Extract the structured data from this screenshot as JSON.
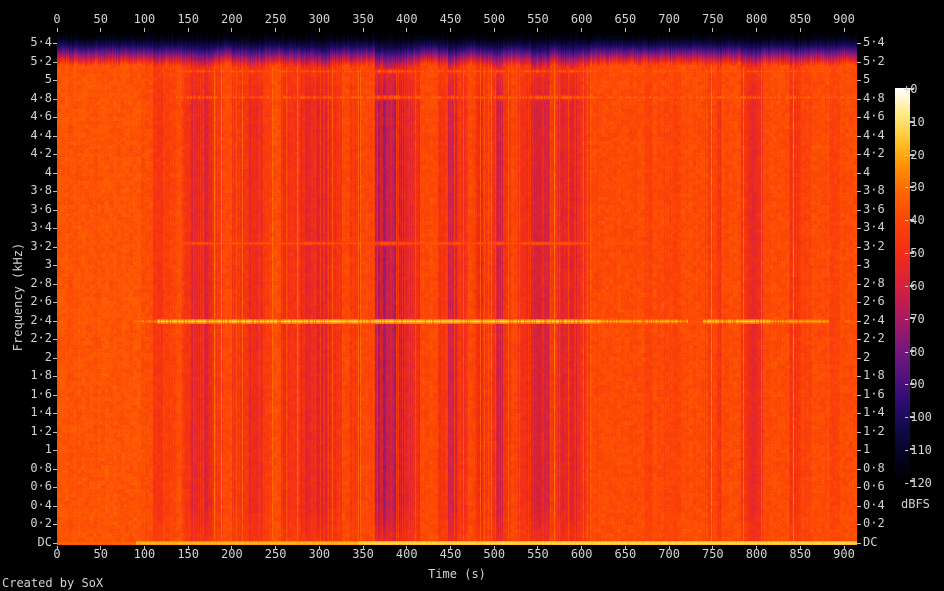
{
  "credit": "Created by SoX",
  "colors": {
    "background": "#000000",
    "label_text": "#d4d4d4",
    "tick_mark": "#c0c0c0"
  },
  "axes": {
    "time": {
      "title": "Time (s)"
    },
    "freq": {
      "title": "Frequency (kHz)"
    },
    "level": {
      "title": "dBFS"
    }
  },
  "chart_data": {
    "type": "heatmap",
    "subtype": "audio-spectrogram",
    "title": "",
    "xlabel": "Time (s)",
    "ylabel": "Frequency (kHz)",
    "zlabel": "dBFS",
    "x_range_s": [
      0,
      914
    ],
    "y_range_khz": [
      0,
      5.5125
    ],
    "z_range_dbfs": [
      -120,
      0
    ],
    "x_ticks": [
      "0",
      "50",
      "100",
      "150",
      "200",
      "250",
      "300",
      "350",
      "400",
      "450",
      "500",
      "550",
      "600",
      "650",
      "700",
      "750",
      "800",
      "850",
      "900"
    ],
    "y_ticks_top_to_bottom": [
      "5·4",
      "5·2",
      "5",
      "4·8",
      "4·6",
      "4·4",
      "4·2",
      "4",
      "3·8",
      "3·6",
      "3·4",
      "3·2",
      "3",
      "2·8",
      "2·6",
      "2·4",
      "2·2",
      "2",
      "1·8",
      "1·6",
      "1·4",
      "1·2",
      "1",
      "0·8",
      "0·6",
      "0·4",
      "0·2",
      "DC"
    ],
    "z_ticks": [
      "+0",
      "-10",
      "-20",
      "-30",
      "-40",
      "-50",
      "-60",
      "-70",
      "-80",
      "-90",
      "-100",
      "-110",
      "-120"
    ],
    "grid": false,
    "legend_position": "right-colorbar",
    "background_level_db": -37.2,
    "lowpass_rolloff_khz": 5.2,
    "palette_stops_db_rgb": [
      [
        -120,
        [
          0,
          0,
          0
        ]
      ],
      [
        -112,
        [
          6,
          4,
          34
        ]
      ],
      [
        -104,
        [
          18,
          9,
          74
        ]
      ],
      [
        -96,
        [
          42,
          13,
          112
        ]
      ],
      [
        -88,
        [
          82,
          19,
          128
        ]
      ],
      [
        -80,
        [
          118,
          24,
          125
        ]
      ],
      [
        -72,
        [
          160,
          26,
          104
        ]
      ],
      [
        -64,
        [
          198,
          31,
          76
        ]
      ],
      [
        -56,
        [
          226,
          38,
          44
        ]
      ],
      [
        -48,
        [
          246,
          50,
          18
        ]
      ],
      [
        -40,
        [
          252,
          70,
          6
        ]
      ],
      [
        -32,
        [
          255,
          100,
          2
        ]
      ],
      [
        -24,
        [
          255,
          144,
          4
        ]
      ],
      [
        -16,
        [
          255,
          196,
          44
        ]
      ],
      [
        -8,
        [
          255,
          235,
          130
        ]
      ],
      [
        0,
        [
          255,
          255,
          255
        ]
      ]
    ],
    "time_bands_s_db": [
      [
        0,
        95,
        -36.2
      ],
      [
        95,
        109,
        -38.5
      ],
      [
        109,
        121,
        -46
      ],
      [
        121,
        136,
        -41.5
      ],
      [
        136,
        142,
        -38.5
      ],
      [
        142,
        152,
        -47
      ],
      [
        152,
        178,
        -52.5
      ],
      [
        178,
        189,
        -46
      ],
      [
        189,
        199,
        -38.8
      ],
      [
        199,
        218,
        -47.5
      ],
      [
        218,
        234,
        -52.5
      ],
      [
        234,
        246,
        -43
      ],
      [
        246,
        256,
        -38.8
      ],
      [
        256,
        279,
        -47.5
      ],
      [
        279,
        297,
        -52
      ],
      [
        297,
        313,
        -56
      ],
      [
        313,
        325,
        -46
      ],
      [
        325,
        333,
        -39
      ],
      [
        333,
        347,
        -45.5
      ],
      [
        347,
        363,
        -40.5
      ],
      [
        363,
        396,
        -62
      ],
      [
        396,
        406,
        -54
      ],
      [
        406,
        414,
        -48
      ],
      [
        414,
        435,
        -39.5
      ],
      [
        435,
        446,
        -46.5
      ],
      [
        446,
        458,
        -56.5
      ],
      [
        458,
        469,
        -46
      ],
      [
        469,
        477,
        -40
      ],
      [
        477,
        499,
        -48.5
      ],
      [
        499,
        509,
        -56
      ],
      [
        509,
        519,
        -47
      ],
      [
        519,
        527,
        -40.5
      ],
      [
        527,
        542,
        -48
      ],
      [
        542,
        563,
        -58
      ],
      [
        563,
        572,
        -44.5
      ],
      [
        572,
        594,
        -54
      ],
      [
        594,
        610,
        -47.5
      ],
      [
        610,
        622,
        -39.5
      ],
      [
        622,
        672,
        -38.5
      ],
      [
        672,
        680,
        -41.5
      ],
      [
        680,
        694,
        -38.8
      ],
      [
        694,
        713,
        -41
      ],
      [
        713,
        740,
        -38.5
      ],
      [
        740,
        748,
        -45
      ],
      [
        748,
        754,
        -41
      ],
      [
        754,
        761,
        -45.5
      ],
      [
        761,
        782,
        -38.8
      ],
      [
        782,
        789,
        -48
      ],
      [
        789,
        807,
        -50.5
      ],
      [
        807,
        837,
        -38.8
      ],
      [
        837,
        850,
        -45.5
      ],
      [
        850,
        862,
        -41
      ],
      [
        862,
        883,
        -38.6
      ],
      [
        883,
        895,
        -42
      ],
      [
        895,
        914,
        -38.6
      ]
    ],
    "tone_lines_khz": [
      {
        "khz": 2.4,
        "segments_s_db": [
          [
            88,
            114,
            -26
          ],
          [
            114,
            621,
            -14
          ],
          [
            621,
            721,
            -19
          ],
          [
            738,
            815,
            -16
          ],
          [
            815,
            882,
            -21
          ],
          [
            901,
            907,
            -28
          ]
        ],
        "bead_cut": 0.22,
        "bead_dim": 7
      },
      {
        "khz": 4.82,
        "segments_s_db": [
          [
            135,
            914,
            -31
          ]
        ],
        "bead_cut": 0.55,
        "bead_dim": 9
      },
      {
        "khz": 5.1,
        "segments_s_db": [
          [
            135,
            914,
            -33.5
          ]
        ],
        "bead_cut": 0.55,
        "bead_dim": 8
      },
      {
        "khz": 3.24,
        "segments_s_db": [
          [
            140,
            680,
            -35
          ]
        ],
        "bead_cut": 0.4,
        "bead_dim": 5
      }
    ],
    "dc_line": {
      "segments_s_db": [
        [
          0,
          90,
          -32
        ],
        [
          90,
          345,
          -18
        ],
        [
          345,
          914,
          -13
        ]
      ]
    }
  }
}
